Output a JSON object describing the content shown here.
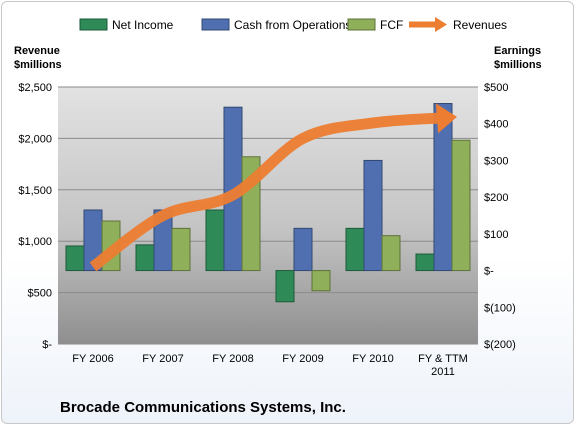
{
  "chart_data": {
    "type": "bar",
    "categories": [
      "FY 2006",
      "FY 2007",
      "FY 2008",
      "FY 2009",
      "FY 2010",
      "FY & TTM 2011"
    ],
    "category_lines": [
      [
        "FY 2006"
      ],
      [
        "FY 2007"
      ],
      [
        "FY 2008"
      ],
      [
        "FY 2009"
      ],
      [
        "FY 2010"
      ],
      [
        "FY & TTM",
        "2011"
      ]
    ],
    "title": "Brocade Communications Systems, Inc.",
    "left_axis": {
      "label_lines": [
        "Revenue",
        "$millions"
      ],
      "ylim": [
        0,
        2500
      ],
      "ticks": [
        0,
        500,
        1000,
        1500,
        2000,
        2500
      ],
      "tick_labels": [
        "$-",
        "$500",
        "$1,000",
        "$1,500",
        "$2,000",
        "$2,500"
      ]
    },
    "right_axis": {
      "label_lines": [
        "Earnings",
        "$millions"
      ],
      "ylim": [
        -200,
        500
      ],
      "ticks": [
        -200,
        -100,
        0,
        100,
        200,
        300,
        400,
        500
      ],
      "tick_labels": [
        "$(200)",
        "$(100)",
        "$-",
        "$100",
        "$200",
        "$300",
        "$400",
        "$500"
      ]
    },
    "series": [
      {
        "name": "Net Income",
        "kind": "bar",
        "axis": "right",
        "color": "#2e8b57",
        "values": [
          67,
          70,
          165,
          -85,
          115,
          45
        ]
      },
      {
        "name": "Cash from Operations",
        "kind": "bar",
        "axis": "right",
        "color": "#4f6fb0",
        "values": [
          165,
          165,
          445,
          115,
          300,
          455
        ]
      },
      {
        "name": "FCF",
        "kind": "bar",
        "axis": "right",
        "color": "#8faf5a",
        "values": [
          135,
          115,
          310,
          -55,
          95,
          355
        ]
      },
      {
        "name": "Revenues",
        "kind": "line",
        "axis": "left",
        "color": "#ed7d31",
        "values": [
          750,
          1250,
          1450,
          2000,
          2150,
          2200
        ]
      }
    ],
    "legend_position": "top",
    "grid": true
  }
}
